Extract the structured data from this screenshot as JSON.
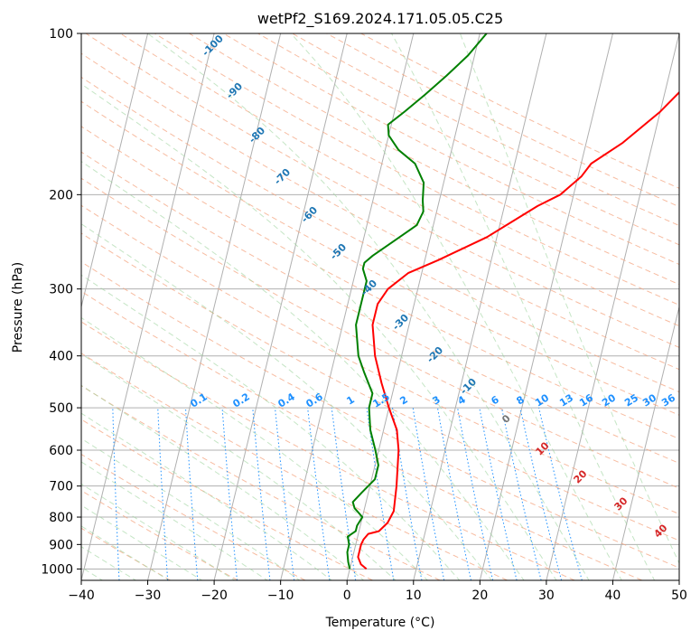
{
  "chart_data": {
    "type": "skew-t",
    "title": "wetPf2_S169.2024.171.05.05.C25",
    "xlabel": "Temperature (°C)",
    "ylabel": "Pressure (hPa)",
    "xlim": [
      -40,
      50
    ],
    "ylim": [
      1050,
      100
    ],
    "y_scale": "log",
    "x_ticks": [
      -40,
      -30,
      -20,
      -10,
      0,
      10,
      20,
      30,
      40,
      50
    ],
    "y_ticks": [
      100,
      200,
      300,
      400,
      500,
      600,
      700,
      800,
      900,
      1000
    ],
    "temperature_color": "#ff0000",
    "dewpoint_color": "#008000",
    "temperature": [
      {
        "p": 1000,
        "t": 2.5
      },
      {
        "p": 980,
        "t": 1.5
      },
      {
        "p": 950,
        "t": 0.8
      },
      {
        "p": 900,
        "t": 0.8
      },
      {
        "p": 880,
        "t": 1.0
      },
      {
        "p": 860,
        "t": 1.5
      },
      {
        "p": 850,
        "t": 3.0
      },
      {
        "p": 820,
        "t": 4.0
      },
      {
        "p": 780,
        "t": 4.5
      },
      {
        "p": 700,
        "t": 4.0
      },
      {
        "p": 600,
        "t": 3.0
      },
      {
        "p": 550,
        "t": 2.0
      },
      {
        "p": 500,
        "t": 0.0
      },
      {
        "p": 450,
        "t": -2.0
      },
      {
        "p": 400,
        "t": -4.0
      },
      {
        "p": 350,
        "t": -5.5
      },
      {
        "p": 320,
        "t": -5.5
      },
      {
        "p": 300,
        "t": -4.5
      },
      {
        "p": 280,
        "t": -2.0
      },
      {
        "p": 265,
        "t": 2.0
      },
      {
        "p": 240,
        "t": 8.5
      },
      {
        "p": 210,
        "t": 15.0
      },
      {
        "p": 200,
        "t": 18.0
      },
      {
        "p": 185,
        "t": 20.5
      },
      {
        "p": 175,
        "t": 21.5
      },
      {
        "p": 160,
        "t": 25.5
      },
      {
        "p": 140,
        "t": 30.0
      },
      {
        "p": 120,
        "t": 34.0
      },
      {
        "p": 105,
        "t": 36.5
      },
      {
        "p": 100,
        "t": 37.0
      }
    ],
    "dewpoint": [
      {
        "p": 1000,
        "t": 0.0
      },
      {
        "p": 970,
        "t": -0.5
      },
      {
        "p": 930,
        "t": -1.0
      },
      {
        "p": 900,
        "t": -1.0
      },
      {
        "p": 870,
        "t": -1.5
      },
      {
        "p": 850,
        "t": -0.5
      },
      {
        "p": 830,
        "t": -0.5
      },
      {
        "p": 800,
        "t": 0.0
      },
      {
        "p": 770,
        "t": -1.5
      },
      {
        "p": 750,
        "t": -2.0
      },
      {
        "p": 720,
        "t": -1.0
      },
      {
        "p": 680,
        "t": 0.5
      },
      {
        "p": 640,
        "t": 0.5
      },
      {
        "p": 600,
        "t": -0.5
      },
      {
        "p": 550,
        "t": -2.0
      },
      {
        "p": 500,
        "t": -3.0
      },
      {
        "p": 470,
        "t": -3.0
      },
      {
        "p": 430,
        "t": -5.0
      },
      {
        "p": 400,
        "t": -6.5
      },
      {
        "p": 350,
        "t": -8.0
      },
      {
        "p": 320,
        "t": -8.0
      },
      {
        "p": 290,
        "t": -8.0
      },
      {
        "p": 275,
        "t": -9.0
      },
      {
        "p": 268,
        "t": -9.0
      },
      {
        "p": 260,
        "t": -8.0
      },
      {
        "p": 245,
        "t": -5.5
      },
      {
        "p": 228,
        "t": -2.5
      },
      {
        "p": 215,
        "t": -2.0
      },
      {
        "p": 205,
        "t": -2.5
      },
      {
        "p": 190,
        "t": -3.0
      },
      {
        "p": 175,
        "t": -5.0
      },
      {
        "p": 165,
        "t": -8.0
      },
      {
        "p": 155,
        "t": -10.0
      },
      {
        "p": 148,
        "t": -10.5
      },
      {
        "p": 140,
        "t": -8.5
      },
      {
        "p": 130,
        "t": -6.0
      },
      {
        "p": 120,
        "t": -3.5
      },
      {
        "p": 110,
        "t": -1.0
      },
      {
        "p": 100,
        "t": 1.0
      }
    ],
    "mixing_ratio_labels": [
      "0.1",
      "0.2",
      "0.4",
      "0.6",
      "1",
      "1.5",
      "2",
      "3",
      "4",
      "6",
      "8",
      "10",
      "13",
      "16",
      "20",
      "25",
      "30",
      "36"
    ],
    "dry_adiabat_labels": [
      "-100",
      "-90",
      "-80",
      "-70",
      "-60",
      "-50",
      "-40",
      "-30",
      "-20",
      "-10"
    ],
    "moist_adiabat_labels": [
      "0",
      "10",
      "20",
      "30",
      "40"
    ],
    "grid": true
  }
}
